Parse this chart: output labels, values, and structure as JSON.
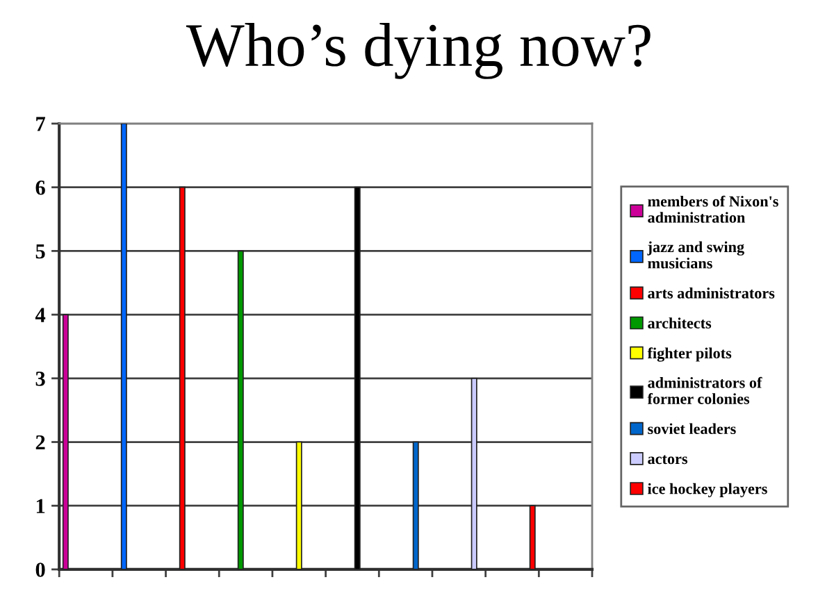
{
  "chart_data": {
    "type": "bar",
    "title": "Who’s dying now?",
    "categories": [
      null,
      null,
      null,
      null,
      null,
      null,
      null,
      null,
      null,
      null
    ],
    "series": [
      {
        "name": "members of Nixon's\nadministration",
        "color": "#cc0099",
        "values": [
          4,
          null,
          null,
          null,
          null,
          null,
          null,
          null,
          null,
          null
        ]
      },
      {
        "name": "jazz and swing\nmusicians",
        "color": "#0066ff",
        "values": [
          null,
          7,
          null,
          null,
          null,
          null,
          null,
          null,
          null,
          null
        ]
      },
      {
        "name": "arts administrators",
        "color": "#ff0000",
        "values": [
          null,
          null,
          6,
          null,
          null,
          null,
          null,
          null,
          null,
          null
        ]
      },
      {
        "name": "architects",
        "color": "#009900",
        "values": [
          null,
          null,
          null,
          5,
          null,
          null,
          null,
          null,
          null,
          null
        ]
      },
      {
        "name": "fighter pilots",
        "color": "#ffff00",
        "values": [
          null,
          null,
          null,
          null,
          2,
          null,
          null,
          null,
          null,
          null
        ]
      },
      {
        "name": "administrators of\nformer colonies",
        "color": "#000000",
        "values": [
          null,
          null,
          null,
          null,
          null,
          6,
          null,
          null,
          null,
          null
        ]
      },
      {
        "name": "soviet leaders",
        "color": "#0066cc",
        "values": [
          null,
          null,
          null,
          null,
          null,
          null,
          2,
          null,
          null,
          null
        ]
      },
      {
        "name": "actors",
        "color": "#ccccff",
        "values": [
          null,
          null,
          null,
          null,
          null,
          null,
          null,
          3,
          null,
          null
        ]
      },
      {
        "name": "ice hockey players",
        "color": "#ff0000",
        "values": [
          null,
          null,
          null,
          null,
          null,
          null,
          null,
          null,
          1,
          null
        ]
      }
    ],
    "ylim": [
      0,
      7
    ],
    "yticks": [
      0,
      1,
      2,
      3,
      4,
      5,
      6,
      7
    ],
    "grid": "y",
    "legend": "right",
    "tick_labels": "y"
  }
}
